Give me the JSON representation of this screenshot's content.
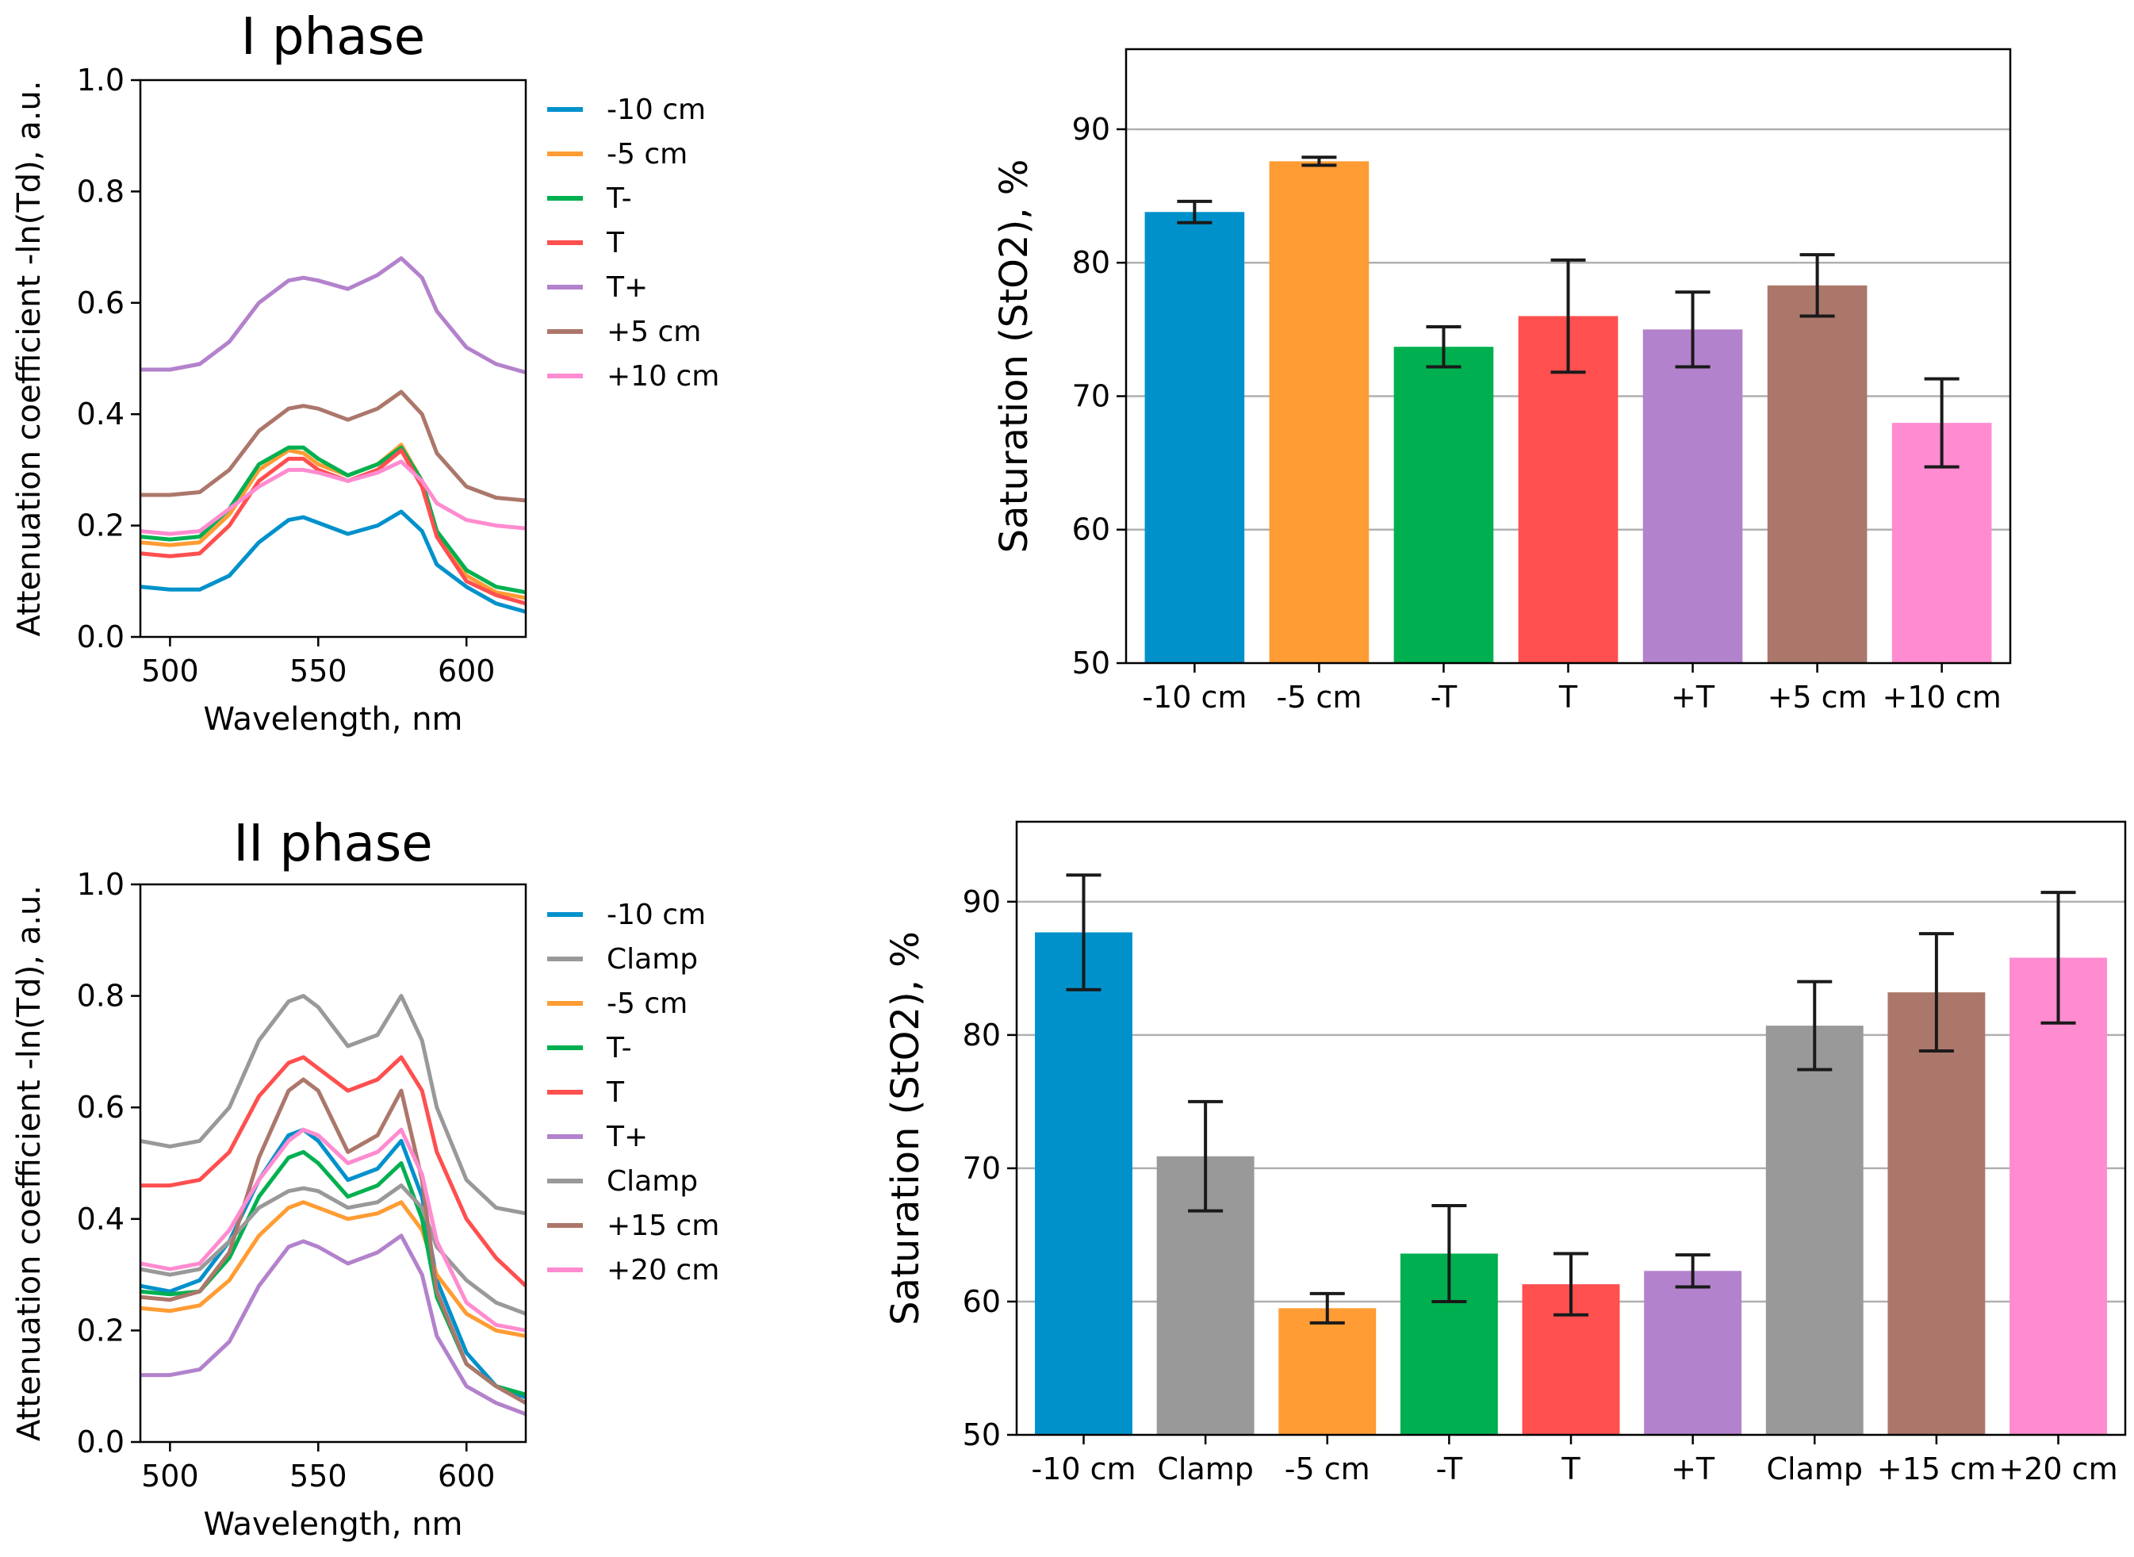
{
  "chart_data": [
    {
      "id": "spectra-phase-1",
      "type": "line",
      "title": "I phase",
      "xlabel": "Wavelength, nm",
      "ylabel": "Attenuation coefficient -ln(Td), a.u.",
      "xlim": [
        490,
        620
      ],
      "ylim": [
        0.0,
        1.0
      ],
      "xticks": [
        500,
        550,
        600
      ],
      "yticks": [
        0.0,
        0.2,
        0.4,
        0.6,
        0.8,
        1.0
      ],
      "legend_position": "right",
      "x": [
        490,
        500,
        510,
        520,
        530,
        540,
        545,
        550,
        560,
        570,
        578,
        585,
        590,
        600,
        610,
        620
      ],
      "series": [
        {
          "name": "-10 cm",
          "color": "#0091cb",
          "values": [
            0.09,
            0.085,
            0.085,
            0.11,
            0.17,
            0.21,
            0.215,
            0.205,
            0.185,
            0.2,
            0.225,
            0.19,
            0.13,
            0.09,
            0.06,
            0.045
          ]
        },
        {
          "name": "-5 cm",
          "color": "#ff9c33",
          "values": [
            0.17,
            0.165,
            0.17,
            0.22,
            0.3,
            0.335,
            0.33,
            0.31,
            0.29,
            0.31,
            0.345,
            0.28,
            0.19,
            0.11,
            0.08,
            0.07
          ]
        },
        {
          "name": "T-",
          "color": "#00b050",
          "values": [
            0.18,
            0.175,
            0.18,
            0.23,
            0.31,
            0.34,
            0.34,
            0.32,
            0.29,
            0.31,
            0.34,
            0.28,
            0.19,
            0.12,
            0.09,
            0.08
          ]
        },
        {
          "name": "T",
          "color": "#ff4f4f",
          "values": [
            0.15,
            0.145,
            0.15,
            0.2,
            0.28,
            0.32,
            0.32,
            0.3,
            0.28,
            0.3,
            0.335,
            0.27,
            0.18,
            0.1,
            0.075,
            0.06
          ]
        },
        {
          "name": "T+",
          "color": "#b382cc",
          "values": [
            0.48,
            0.48,
            0.49,
            0.53,
            0.6,
            0.64,
            0.645,
            0.64,
            0.625,
            0.65,
            0.68,
            0.645,
            0.585,
            0.52,
            0.49,
            0.475
          ]
        },
        {
          "name": "+5 cm",
          "color": "#ac776b",
          "values": [
            0.255,
            0.255,
            0.26,
            0.3,
            0.37,
            0.41,
            0.415,
            0.41,
            0.39,
            0.41,
            0.44,
            0.4,
            0.33,
            0.27,
            0.25,
            0.245
          ]
        },
        {
          "name": "+10 cm",
          "color": "#ff8bd0",
          "values": [
            0.19,
            0.185,
            0.19,
            0.23,
            0.27,
            0.3,
            0.3,
            0.295,
            0.28,
            0.295,
            0.315,
            0.28,
            0.24,
            0.21,
            0.2,
            0.195
          ]
        }
      ]
    },
    {
      "id": "bars-phase-1",
      "type": "bar",
      "title": "",
      "xlabel": "",
      "ylabel": "Saturation (StO2), %",
      "ylim": [
        50,
        96
      ],
      "yticks": [
        50,
        60,
        70,
        80,
        90
      ],
      "grid": "y",
      "categories": [
        "-10 cm",
        "-5 cm",
        "-T",
        "T",
        "+T",
        "+5 cm",
        "+10 cm"
      ],
      "values": [
        83.8,
        87.6,
        73.7,
        76.0,
        75.0,
        78.3,
        68.0
      ],
      "errors": [
        0.8,
        0.3,
        1.5,
        4.2,
        2.8,
        2.3,
        3.3
      ],
      "colors": [
        "#0091cb",
        "#ff9c33",
        "#00b050",
        "#ff4f4f",
        "#b382cc",
        "#ac776b",
        "#ff8bd0"
      ]
    },
    {
      "id": "spectra-phase-2",
      "type": "line",
      "title": "II phase",
      "xlabel": "Wavelength, nm",
      "ylabel": "Attenuation coefficient -ln(Td), a.u.",
      "xlim": [
        490,
        620
      ],
      "ylim": [
        0.0,
        1.0
      ],
      "xticks": [
        500,
        550,
        600
      ],
      "yticks": [
        0.0,
        0.2,
        0.4,
        0.6,
        0.8,
        1.0
      ],
      "legend_position": "right",
      "x": [
        490,
        500,
        510,
        520,
        530,
        540,
        545,
        550,
        560,
        570,
        578,
        585,
        590,
        600,
        610,
        620
      ],
      "series": [
        {
          "name": "-10 cm",
          "color": "#0091cb",
          "values": [
            0.28,
            0.27,
            0.29,
            0.36,
            0.47,
            0.55,
            0.56,
            0.54,
            0.47,
            0.49,
            0.54,
            0.44,
            0.29,
            0.16,
            0.1,
            0.08
          ]
        },
        {
          "name": "Clamp",
          "color": "#999999",
          "values": [
            0.54,
            0.53,
            0.54,
            0.6,
            0.72,
            0.79,
            0.8,
            0.78,
            0.71,
            0.73,
            0.8,
            0.72,
            0.6,
            0.47,
            0.42,
            0.41
          ]
        },
        {
          "name": "-5 cm",
          "color": "#ff9c33",
          "values": [
            0.24,
            0.235,
            0.245,
            0.29,
            0.37,
            0.42,
            0.43,
            0.42,
            0.4,
            0.41,
            0.43,
            0.38,
            0.3,
            0.23,
            0.2,
            0.19
          ]
        },
        {
          "name": "T-",
          "color": "#00b050",
          "values": [
            0.27,
            0.265,
            0.27,
            0.33,
            0.44,
            0.51,
            0.52,
            0.5,
            0.44,
            0.46,
            0.5,
            0.4,
            0.26,
            0.14,
            0.1,
            0.085
          ]
        },
        {
          "name": "T",
          "color": "#ff4f4f",
          "values": [
            0.46,
            0.46,
            0.47,
            0.52,
            0.62,
            0.68,
            0.69,
            0.67,
            0.63,
            0.65,
            0.69,
            0.63,
            0.52,
            0.4,
            0.33,
            0.28
          ]
        },
        {
          "name": "T+",
          "color": "#b382cc",
          "values": [
            0.12,
            0.12,
            0.13,
            0.18,
            0.28,
            0.35,
            0.36,
            0.35,
            0.32,
            0.34,
            0.37,
            0.3,
            0.19,
            0.1,
            0.07,
            0.05
          ]
        },
        {
          "name": "Clamp",
          "color": "#999999",
          "values": [
            0.31,
            0.3,
            0.31,
            0.36,
            0.42,
            0.45,
            0.455,
            0.45,
            0.42,
            0.43,
            0.46,
            0.42,
            0.35,
            0.29,
            0.25,
            0.23
          ]
        },
        {
          "name": "+15 cm",
          "color": "#ac776b",
          "values": [
            0.26,
            0.255,
            0.27,
            0.34,
            0.51,
            0.63,
            0.65,
            0.63,
            0.52,
            0.55,
            0.63,
            0.47,
            0.27,
            0.14,
            0.1,
            0.07
          ]
        },
        {
          "name": "+20 cm",
          "color": "#ff8bd0",
          "values": [
            0.32,
            0.31,
            0.32,
            0.38,
            0.47,
            0.54,
            0.56,
            0.55,
            0.5,
            0.52,
            0.56,
            0.48,
            0.36,
            0.25,
            0.21,
            0.2
          ]
        }
      ]
    },
    {
      "id": "bars-phase-2",
      "type": "bar",
      "title": "",
      "xlabel": "",
      "ylabel": "Saturation (StO2), %",
      "ylim": [
        50,
        96
      ],
      "yticks": [
        50,
        60,
        70,
        80,
        90
      ],
      "grid": "y",
      "categories": [
        "-10 cm",
        "Clamp",
        "-5 cm",
        "-T",
        "T",
        "+T",
        "Clamp",
        "+15 cm",
        "+20 cm"
      ],
      "values": [
        87.7,
        70.9,
        59.5,
        63.6,
        61.3,
        62.3,
        80.7,
        83.2,
        85.8
      ],
      "errors": [
        4.3,
        4.1,
        1.1,
        3.6,
        2.3,
        1.2,
        3.3,
        4.4,
        4.9
      ],
      "colors": [
        "#0091cb",
        "#999999",
        "#ff9c33",
        "#00b050",
        "#ff4f4f",
        "#b382cc",
        "#999999",
        "#ac776b",
        "#ff8bd0"
      ]
    }
  ]
}
